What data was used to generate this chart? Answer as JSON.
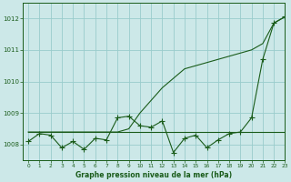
{
  "title": "Graphe pression niveau de la mer (hPa)",
  "xlim": [
    -0.5,
    23
  ],
  "ylim": [
    1007.5,
    1012.5
  ],
  "yticks": [
    1008,
    1009,
    1010,
    1011,
    1012
  ],
  "xticks": [
    0,
    1,
    2,
    3,
    4,
    5,
    6,
    7,
    8,
    9,
    10,
    11,
    12,
    13,
    14,
    15,
    16,
    17,
    18,
    19,
    20,
    21,
    22,
    23
  ],
  "bg_color": "#cce8e8",
  "grid_color": "#99cccc",
  "line_color": "#1a5c1a",
  "smooth_rise": [
    1008.4,
    1008.4,
    1008.4,
    1008.4,
    1008.4,
    1008.4,
    1008.4,
    1008.4,
    1008.4,
    1008.5,
    1009.0,
    1009.4,
    1009.8,
    1010.1,
    1010.4,
    1010.5,
    1010.6,
    1010.7,
    1010.8,
    1010.9,
    1011.0,
    1011.2,
    1011.85,
    1012.05
  ],
  "flat_line": [
    1008.4,
    1008.4,
    1008.4,
    1008.4,
    1008.4,
    1008.4,
    1008.4,
    1008.4,
    1008.4,
    1008.4,
    1008.4,
    1008.4,
    1008.4,
    1008.4,
    1008.4,
    1008.4,
    1008.4,
    1008.4,
    1008.4,
    1008.4,
    1008.4,
    1008.4,
    1008.4,
    1008.4
  ],
  "jagged": [
    1008.1,
    1008.35,
    1008.3,
    1007.9,
    1008.1,
    1007.85,
    1008.2,
    1008.15,
    1008.85,
    1008.9,
    1008.6,
    1008.55,
    1008.75,
    1007.75,
    1008.2,
    1008.3,
    1007.9,
    1008.15,
    1008.35,
    1008.4,
    1008.85,
    1010.7,
    1011.85,
    1012.05
  ]
}
